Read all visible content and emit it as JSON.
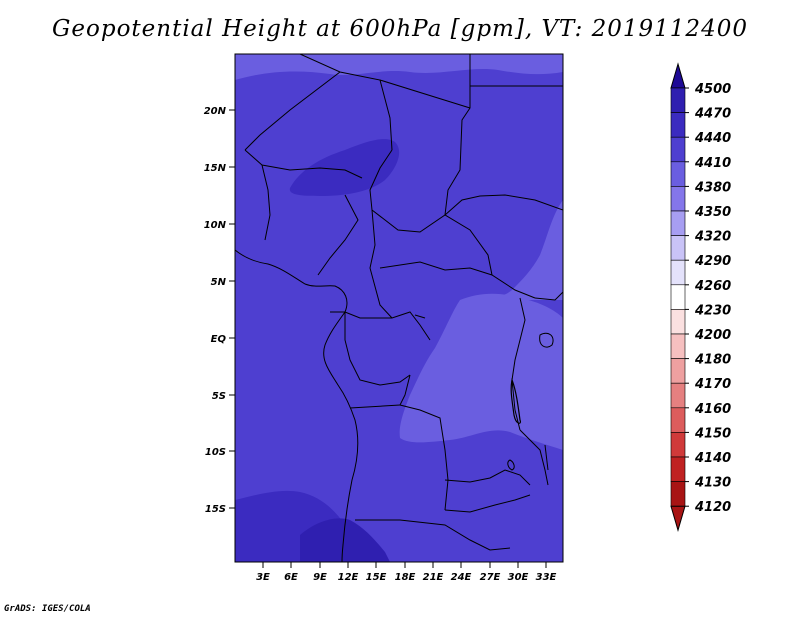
{
  "title": "Geopotential Height at 600hPa [gpm], VT: 2019112400",
  "credit": "GrADS: IGES/COLA",
  "map": {
    "lon_labels": [
      "3E",
      "6E",
      "9E",
      "12E",
      "15E",
      "18E",
      "21E",
      "24E",
      "27E",
      "30E",
      "33E"
    ],
    "lat_labels": [
      "20N",
      "15N",
      "10N",
      "5N",
      "EQ",
      "5S",
      "10S",
      "15S"
    ],
    "field_colors": {
      "level_4380": "#6a5ee0",
      "level_4410": "#4e3fd0",
      "level_4440": "#3b2bc0",
      "level_4470": "#2f1fb0"
    }
  },
  "colorbar": {
    "levels": [
      "4500",
      "4470",
      "4440",
      "4410",
      "4380",
      "4350",
      "4320",
      "4290",
      "4260",
      "4230",
      "4200",
      "4180",
      "4170",
      "4160",
      "4150",
      "4140",
      "4130",
      "4120"
    ],
    "colors": [
      "#1e0a96",
      "#2f1fb0",
      "#3b2bc0",
      "#4e3fd0",
      "#6a5ee0",
      "#8476ea",
      "#a79ef2",
      "#c9c3f7",
      "#e4e2fb",
      "#ffffff",
      "#fbe0e0",
      "#f6c0c0",
      "#eea0a0",
      "#e58080",
      "#dc5c5c",
      "#d03a3a",
      "#c02222",
      "#a81414"
    ]
  }
}
